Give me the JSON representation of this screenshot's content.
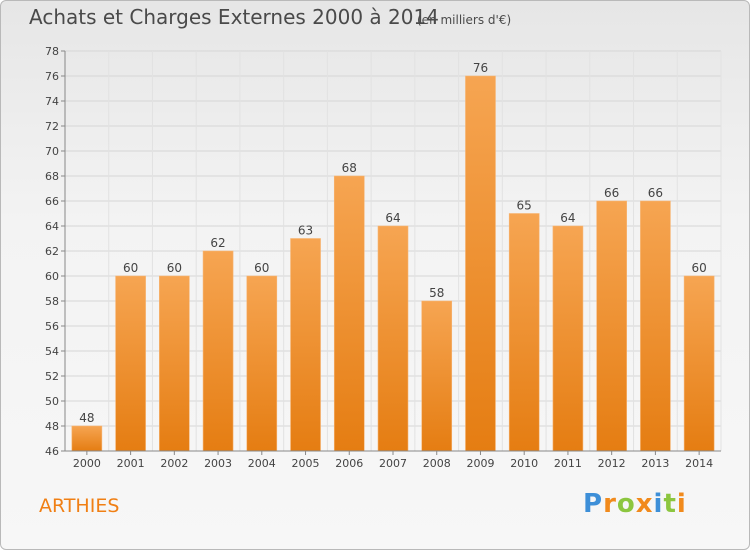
{
  "header": {
    "title": "Achats et Charges Externes 2000 à 2014",
    "subtitle": "(en milliers d'€)"
  },
  "footer": {
    "commune": "ARTHIES",
    "logo": "Proxiti",
    "logo_letters": [
      "P",
      "r",
      "o",
      "x",
      "i",
      "t",
      "i"
    ]
  },
  "colors": {
    "bar_top": "#f6a552",
    "bar_bottom": "#e57d12",
    "commune": "#f07f14"
  },
  "chart_data": {
    "type": "bar",
    "categories": [
      "2000",
      "2001",
      "2002",
      "2003",
      "2004",
      "2005",
      "2006",
      "2007",
      "2008",
      "2009",
      "2010",
      "2011",
      "2012",
      "2013",
      "2014"
    ],
    "values": [
      48,
      60,
      60,
      62,
      60,
      63,
      68,
      64,
      58,
      76,
      65,
      64,
      66,
      66,
      60
    ],
    "ylim": [
      46,
      78
    ],
    "yticks": [
      46,
      48,
      50,
      52,
      54,
      56,
      58,
      60,
      62,
      64,
      66,
      68,
      70,
      72,
      74,
      76,
      78
    ],
    "grid": true,
    "title": "Achats et Charges Externes 2000 à 2014",
    "subtitle": "(en milliers d'€)"
  }
}
